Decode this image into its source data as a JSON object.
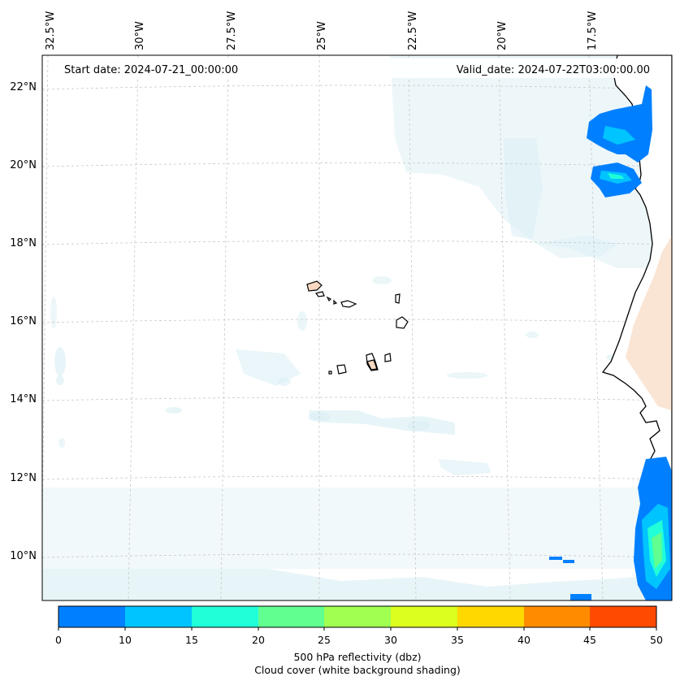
{
  "header": {
    "start_date": "Start date: 2024-07-21_00:00:00",
    "valid_date": "Valid_date: 2024-07-22T03:00:00.00"
  },
  "longitude_labels": [
    "32.5°W",
    "30°W",
    "27.5°W",
    "25°W",
    "22.5°W",
    "20°W",
    "17.5°W"
  ],
  "latitude_labels": [
    "22°N",
    "20°N",
    "18°N",
    "16°N",
    "14°N",
    "12°N",
    "10°N"
  ],
  "colorbar": {
    "ticks": [
      "0",
      "10",
      "15",
      "20",
      "25",
      "30",
      "35",
      "40",
      "45",
      "50"
    ],
    "colors": [
      "#0080ff",
      "#00c4ff",
      "#20ffd8",
      "#60ff90",
      "#a0ff50",
      "#dcff20",
      "#ffd800",
      "#ff8c00",
      "#ff4a00"
    ],
    "title_line1": "500 hPa reflectivity (dbz)",
    "title_line2": "Cloud cover (white background shading)"
  },
  "colors": {
    "land": "#f8d8c0",
    "cloud": "#d8eef4",
    "coast": "#000000",
    "grid": "#c8c8c8"
  }
}
